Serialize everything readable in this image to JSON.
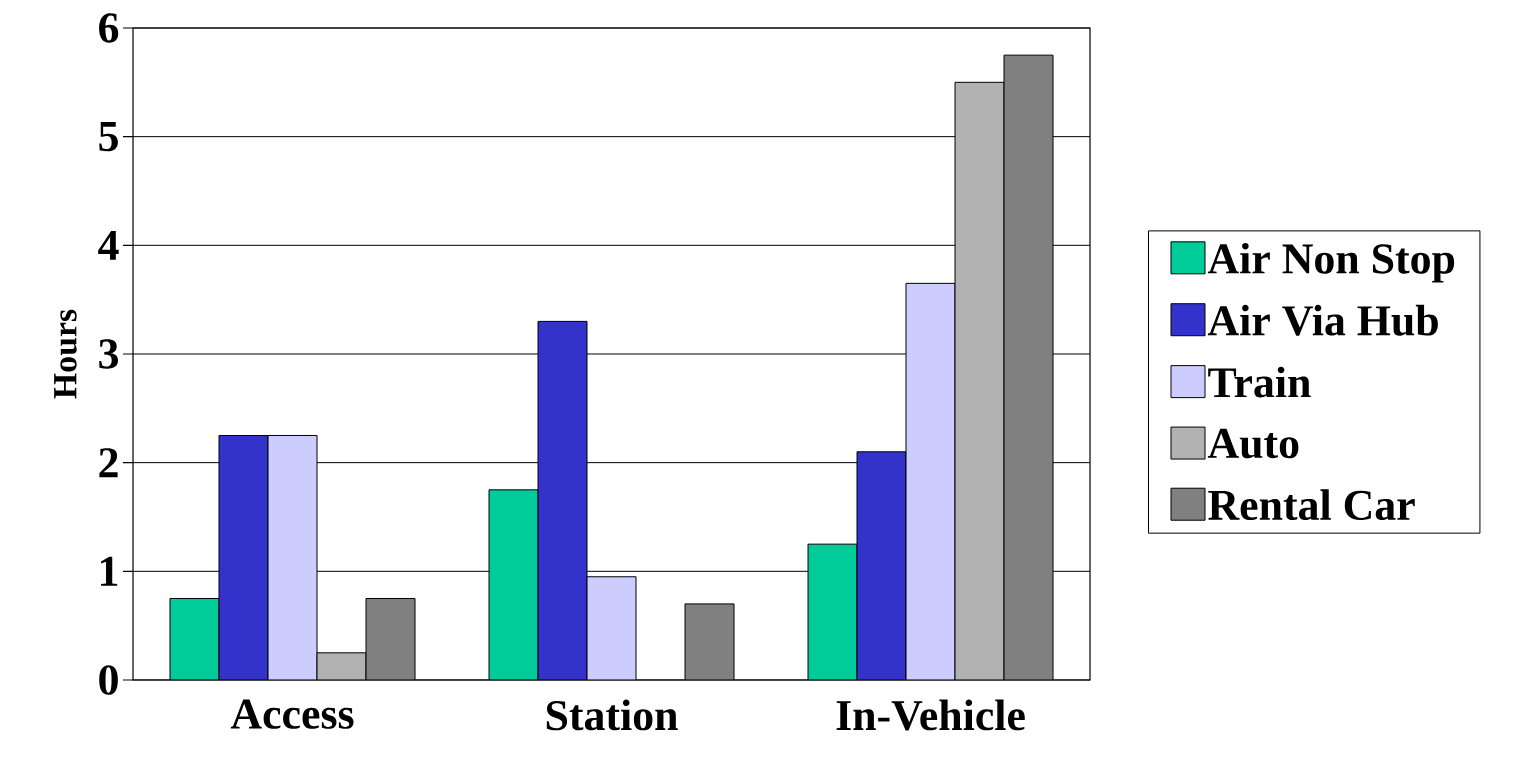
{
  "chart_data": {
    "type": "bar",
    "ylabel": "Hours",
    "categories": [
      "Access",
      "Station",
      "In-Vehicle"
    ],
    "series": [
      {
        "name": "Air Non Stop",
        "color": "#00cc99",
        "values": [
          0.75,
          1.75,
          1.25
        ]
      },
      {
        "name": "Air Via Hub",
        "color": "#3333cc",
        "values": [
          2.25,
          3.3,
          2.1
        ]
      },
      {
        "name": "Train",
        "color": "#ccccff",
        "values": [
          2.25,
          0.95,
          3.65
        ]
      },
      {
        "name": "Auto",
        "color": "#b2b2b2",
        "values": [
          0.25,
          null,
          5.5
        ]
      },
      {
        "name": "Rental Car",
        "color": "#808080",
        "values": [
          0.75,
          0.7,
          5.75
        ]
      }
    ],
    "ylim": [
      0,
      6
    ],
    "yticks": [
      0,
      1,
      2,
      3,
      4,
      5,
      6
    ],
    "grid": "y",
    "legend": "right"
  }
}
